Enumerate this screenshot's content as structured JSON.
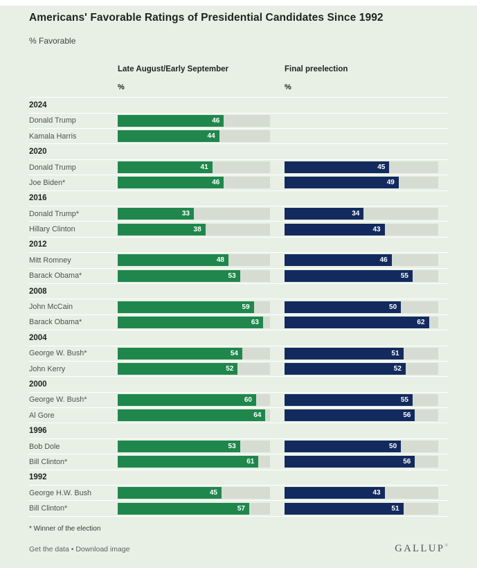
{
  "title": "Americans' Favorable Ratings of Presidential Candidates Since 1992",
  "subtitle": "% Favorable",
  "columns": {
    "august": {
      "label": "Late August/Early September",
      "unit": "%"
    },
    "final": {
      "label": "Final preelection",
      "unit": "%"
    }
  },
  "footnote": "* Winner of the election",
  "footer": {
    "get_data_label": "Get the data",
    "separator": "•",
    "download_label": "Download image",
    "brand": "GALLUP",
    "trademark": "®"
  },
  "colors": {
    "background": "#e8f0e5",
    "bar_green": "#1f874c",
    "bar_navy": "#122a5e",
    "track": "#d7dcd3",
    "separator": "#ffffff",
    "text_dark": "#1c241c",
    "text_label": "#4b534c",
    "text_footer": "#5c665d"
  },
  "chart_data": {
    "type": "bar",
    "orientation": "horizontal",
    "unit": "% favorable",
    "series": [
      "Late August/Early September",
      "Final preelection"
    ],
    "scale_max": 66,
    "grid": false,
    "legend_position": "column-headers",
    "groups": [
      {
        "year": "2024",
        "rows": [
          {
            "label": "Donald Trump",
            "august": 46,
            "final": null
          },
          {
            "label": "Kamala Harris",
            "august": 44,
            "final": null
          }
        ]
      },
      {
        "year": "2020",
        "rows": [
          {
            "label": "Donald Trump",
            "august": 41,
            "final": 45
          },
          {
            "label": "Joe Biden*",
            "august": 46,
            "final": 49
          }
        ]
      },
      {
        "year": "2016",
        "rows": [
          {
            "label": "Donald Trump*",
            "august": 33,
            "final": 34
          },
          {
            "label": "Hillary Clinton",
            "august": 38,
            "final": 43
          }
        ]
      },
      {
        "year": "2012",
        "rows": [
          {
            "label": "Mitt Romney",
            "august": 48,
            "final": 46
          },
          {
            "label": "Barack Obama*",
            "august": 53,
            "final": 55
          }
        ]
      },
      {
        "year": "2008",
        "rows": [
          {
            "label": "John McCain",
            "august": 59,
            "final": 50
          },
          {
            "label": "Barack Obama*",
            "august": 63,
            "final": 62
          }
        ]
      },
      {
        "year": "2004",
        "rows": [
          {
            "label": "George W. Bush*",
            "august": 54,
            "final": 51
          },
          {
            "label": "John Kerry",
            "august": 52,
            "final": 52
          }
        ]
      },
      {
        "year": "2000",
        "rows": [
          {
            "label": "George W. Bush*",
            "august": 60,
            "final": 55
          },
          {
            "label": "Al Gore",
            "august": 64,
            "final": 56
          }
        ]
      },
      {
        "year": "1996",
        "rows": [
          {
            "label": "Bob Dole",
            "august": 53,
            "final": 50
          },
          {
            "label": "Bill Clinton*",
            "august": 61,
            "final": 56
          }
        ]
      },
      {
        "year": "1992",
        "rows": [
          {
            "label": "George H.W. Bush",
            "august": 45,
            "final": 43
          },
          {
            "label": "Bill Clinton*",
            "august": 57,
            "final": 51
          }
        ]
      }
    ]
  }
}
